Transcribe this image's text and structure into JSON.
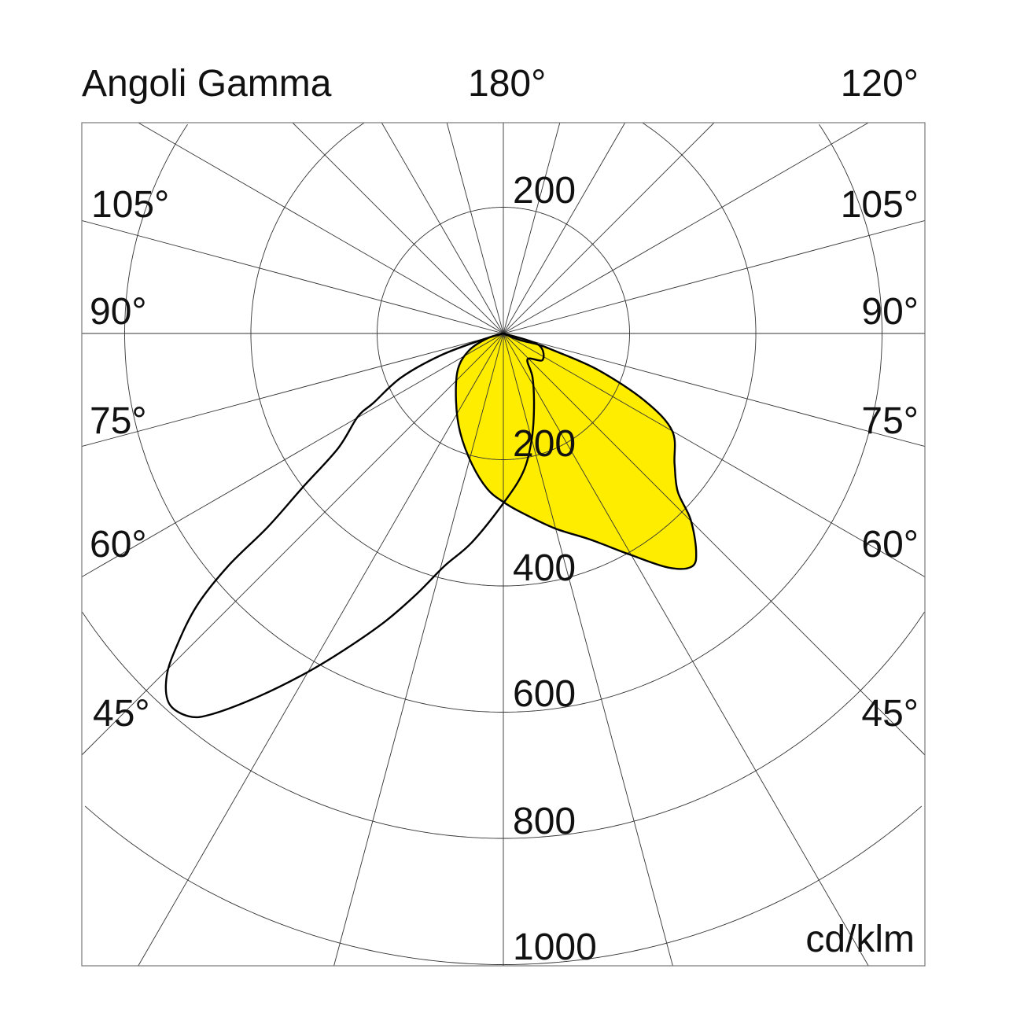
{
  "chart_data": {
    "type": "polar",
    "title": "Angoli Gamma",
    "unit": "cd/klm",
    "radial_ticks": [
      "200",
      "200",
      "400",
      "600",
      "800",
      "1000"
    ],
    "rings": [
      200,
      400,
      600,
      800,
      1000
    ],
    "angle_step_deg": 15,
    "angle_labels": {
      "top_center": "180°",
      "top_right": "120°",
      "left": [
        "105°",
        "90°",
        "75°",
        "60°",
        "45°"
      ],
      "right": [
        "105°",
        "90°",
        "75°",
        "60°",
        "45°"
      ]
    },
    "grid": true,
    "series": [
      {
        "style": "filled",
        "color": "#FFED00",
        "points_gamma_intensity": [
          [
            0,
            0
          ],
          [
            68.2,
            27
          ],
          [
            72.3,
            58
          ],
          [
            71.6,
            79
          ],
          [
            69.0,
            160
          ],
          [
            64.5,
            249
          ],
          [
            60.0,
            309
          ],
          [
            52.7,
            341
          ],
          [
            47.8,
            373
          ],
          [
            45.2,
            418
          ],
          [
            41.6,
            460
          ],
          [
            39.0,
            475
          ],
          [
            35.2,
            454
          ],
          [
            29.7,
            403
          ],
          [
            22.8,
            354
          ],
          [
            14.7,
            319
          ],
          [
            5.1,
            283
          ],
          [
            0,
            267
          ],
          [
            -5.8,
            248
          ],
          [
            -13.5,
            213
          ],
          [
            -23.6,
            171
          ],
          [
            -34.9,
            131
          ],
          [
            -51.6,
            92
          ],
          [
            -63.9,
            60
          ],
          [
            -73.3,
            26
          ],
          [
            0,
            0
          ]
        ]
      },
      {
        "style": "outline",
        "color": "#000000",
        "points_gamma_intensity": [
          [
            0,
            0
          ],
          [
            72.3,
            58
          ],
          [
            55.8,
            75
          ],
          [
            43.2,
            56
          ],
          [
            33.5,
            84
          ],
          [
            22.1,
            129
          ],
          [
            14.8,
            175
          ],
          [
            8.1,
            222
          ],
          [
            0,
            269
          ],
          [
            -8.6,
            335
          ],
          [
            -14.2,
            380
          ],
          [
            -18.4,
            435
          ],
          [
            -22.3,
            493
          ],
          [
            -26.5,
            558
          ],
          [
            -30.1,
            621
          ],
          [
            -33.9,
            692
          ],
          [
            -37.4,
            759
          ],
          [
            -39.4,
            785
          ],
          [
            -42.1,
            790
          ],
          [
            -44.5,
            761
          ],
          [
            -46.3,
            715
          ],
          [
            -48.4,
            649
          ],
          [
            -49.8,
            571
          ],
          [
            -50.6,
            483
          ],
          [
            -52.5,
            401
          ],
          [
            -55.2,
            319
          ],
          [
            -60.2,
            266
          ],
          [
            -61.9,
            233
          ],
          [
            -66.7,
            176
          ],
          [
            -70.7,
            106
          ],
          [
            -73.3,
            39
          ],
          [
            0,
            0
          ]
        ]
      }
    ]
  }
}
